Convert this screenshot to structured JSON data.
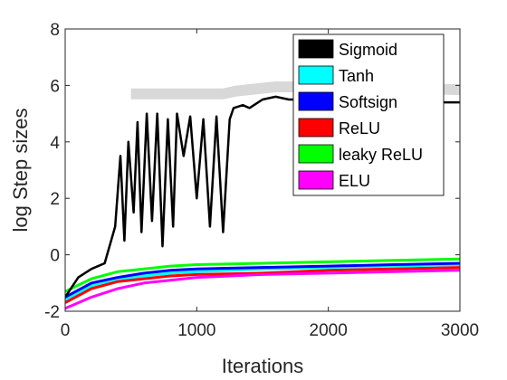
{
  "chart_data": {
    "type": "line",
    "xlabel": "Iterations",
    "ylabel": "log Step sizes",
    "xlim": [
      0,
      3000
    ],
    "ylim": [
      -2,
      8
    ],
    "xticks": [
      0,
      1000,
      2000,
      3000
    ],
    "yticks": [
      -2,
      0,
      2,
      4,
      6,
      8
    ],
    "legend_position": "top-right",
    "grid": false,
    "series": [
      {
        "name": "Sigmoid",
        "color": "#000000",
        "shadow_color": "#d8d8d8",
        "shadow_points": [
          [
            500,
            5.7
          ],
          [
            1200,
            5.7
          ],
          [
            1300,
            5.8
          ],
          [
            1600,
            5.95
          ],
          [
            2000,
            5.95
          ],
          [
            2500,
            5.9
          ],
          [
            3000,
            5.85
          ]
        ],
        "points": [
          [
            0,
            -1.5
          ],
          [
            100,
            -0.8
          ],
          [
            200,
            -0.5
          ],
          [
            300,
            -0.3
          ],
          [
            380,
            1.0
          ],
          [
            420,
            3.5
          ],
          [
            450,
            0.5
          ],
          [
            480,
            4.0
          ],
          [
            520,
            1.5
          ],
          [
            550,
            4.7
          ],
          [
            580,
            0.8
          ],
          [
            620,
            5.0
          ],
          [
            660,
            1.2
          ],
          [
            700,
            5.0
          ],
          [
            740,
            0.3
          ],
          [
            780,
            4.8
          ],
          [
            820,
            1.0
          ],
          [
            850,
            5.0
          ],
          [
            900,
            3.5
          ],
          [
            950,
            4.9
          ],
          [
            1000,
            2.0
          ],
          [
            1050,
            4.8
          ],
          [
            1100,
            1.0
          ],
          [
            1150,
            4.9
          ],
          [
            1200,
            0.8
          ],
          [
            1250,
            4.8
          ],
          [
            1280,
            5.2
          ],
          [
            1350,
            5.3
          ],
          [
            1400,
            5.2
          ],
          [
            1500,
            5.5
          ],
          [
            1600,
            5.6
          ],
          [
            1700,
            5.5
          ],
          [
            1800,
            5.5
          ],
          [
            1900,
            5.5
          ],
          [
            2000,
            5.45
          ],
          [
            2200,
            5.45
          ],
          [
            2400,
            5.4
          ],
          [
            2600,
            5.45
          ],
          [
            2800,
            5.4
          ],
          [
            3000,
            5.4
          ]
        ]
      },
      {
        "name": "Tanh",
        "color": "#00ffff",
        "points": [
          [
            0,
            -1.6
          ],
          [
            200,
            -1.1
          ],
          [
            400,
            -0.9
          ],
          [
            600,
            -0.75
          ],
          [
            800,
            -0.65
          ],
          [
            1000,
            -0.6
          ],
          [
            1500,
            -0.5
          ],
          [
            2000,
            -0.45
          ],
          [
            2500,
            -0.4
          ],
          [
            3000,
            -0.35
          ]
        ]
      },
      {
        "name": "Softsign",
        "color": "#0000ff",
        "points": [
          [
            0,
            -1.5
          ],
          [
            200,
            -1.0
          ],
          [
            400,
            -0.8
          ],
          [
            600,
            -0.65
          ],
          [
            800,
            -0.55
          ],
          [
            1000,
            -0.5
          ],
          [
            1500,
            -0.45
          ],
          [
            2000,
            -0.4
          ],
          [
            2500,
            -0.35
          ],
          [
            3000,
            -0.3
          ]
        ]
      },
      {
        "name": "ReLU",
        "color": "#ff0000",
        "points": [
          [
            0,
            -1.7
          ],
          [
            200,
            -1.2
          ],
          [
            400,
            -0.95
          ],
          [
            600,
            -0.85
          ],
          [
            800,
            -0.75
          ],
          [
            1000,
            -0.7
          ],
          [
            1500,
            -0.65
          ],
          [
            2000,
            -0.55
          ],
          [
            2500,
            -0.5
          ],
          [
            3000,
            -0.45
          ]
        ]
      },
      {
        "name": "leaky ReLU",
        "color": "#00ff00",
        "points": [
          [
            0,
            -1.3
          ],
          [
            200,
            -0.85
          ],
          [
            400,
            -0.6
          ],
          [
            600,
            -0.5
          ],
          [
            800,
            -0.4
          ],
          [
            1000,
            -0.35
          ],
          [
            1500,
            -0.3
          ],
          [
            2000,
            -0.25
          ],
          [
            2500,
            -0.2
          ],
          [
            3000,
            -0.15
          ]
        ]
      },
      {
        "name": "ELU",
        "color": "#ff00ff",
        "points": [
          [
            0,
            -1.9
          ],
          [
            200,
            -1.5
          ],
          [
            400,
            -1.2
          ],
          [
            600,
            -1.0
          ],
          [
            800,
            -0.9
          ],
          [
            1000,
            -0.8
          ],
          [
            1500,
            -0.7
          ],
          [
            2000,
            -0.65
          ],
          [
            2500,
            -0.6
          ],
          [
            3000,
            -0.55
          ]
        ]
      }
    ]
  }
}
